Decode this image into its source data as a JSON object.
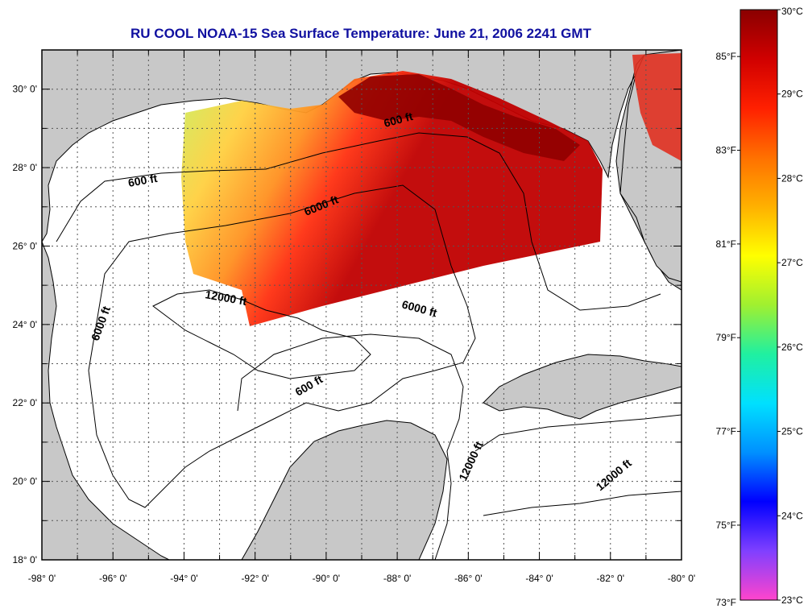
{
  "title": "RU COOL  NOAA-15  Sea Surface Temperature:  June 21, 2006 2241 GMT",
  "map": {
    "lon_ticks": [
      "-98° 0'",
      "-96° 0'",
      "-94° 0'",
      "-92° 0'",
      "-90° 0'",
      "-88° 0'",
      "-86° 0'",
      "-84° 0'",
      "-82° 0'",
      "-80° 0'"
    ],
    "lat_ticks": [
      "30° 0'",
      "28° 0'",
      "26° 0'",
      "24° 0'",
      "22° 0'",
      "20° 0'",
      "18° 0'"
    ],
    "lon_range": [
      -98,
      -80
    ],
    "lat_range": [
      18,
      31
    ],
    "land_color": "#c8c8c8",
    "ocean_color": "#ffffff",
    "contour_labels": [
      "600 ft",
      "600 ft",
      "6000 ft",
      "12000 ft",
      "6000 ft",
      "6000 ft",
      "600 ft",
      "12000 ft",
      "12000 ft"
    ]
  },
  "colorbar": {
    "celsius_labels": [
      "30°C",
      "29°C",
      "28°C",
      "27°C",
      "26°C",
      "25°C",
      "24°C",
      "23°C"
    ],
    "fahrenheit_labels": [
      "85°F",
      "83°F",
      "81°F",
      "79°F",
      "77°F",
      "75°F",
      "73°F"
    ],
    "celsius_range": [
      23,
      30
    ],
    "stops": [
      "#ff44cc",
      "#8040ff",
      "#0000ff",
      "#0090ff",
      "#00e0ff",
      "#20f0a0",
      "#a0f030",
      "#ffff00",
      "#ffb000",
      "#ff7000",
      "#ff2000",
      "#d00000",
      "#8a0000"
    ]
  }
}
